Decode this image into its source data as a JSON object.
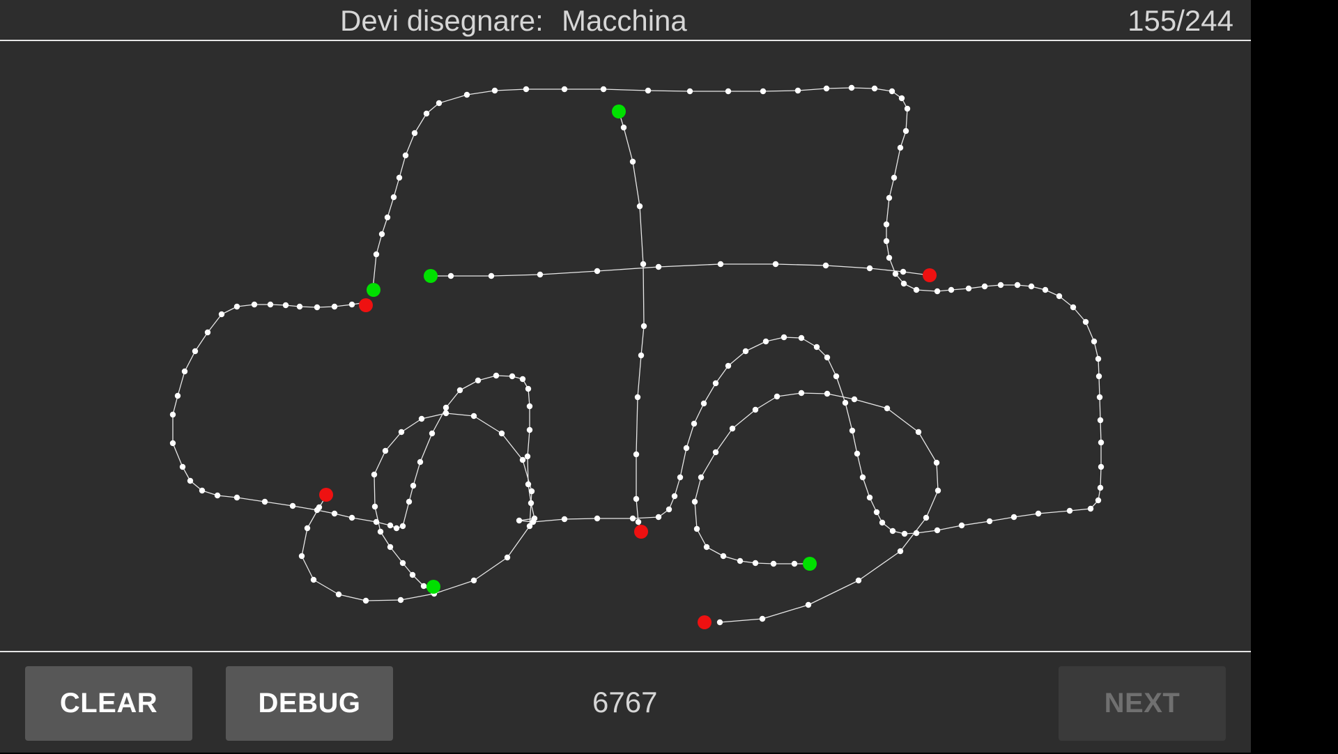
{
  "header": {
    "prompt_label": "Devi disegnare:",
    "prompt_word": "Macchina",
    "counter": "155/244"
  },
  "footer": {
    "clear_label": "CLEAR",
    "debug_label": "DEBUG",
    "score": "6767",
    "next_label": "NEXT"
  },
  "colors": {
    "background": "#2d2d2d",
    "stroke": "#e8e8e8",
    "point": "#ffffff",
    "stroke_start": "#00e000",
    "stroke_end": "#ee1111"
  }
}
